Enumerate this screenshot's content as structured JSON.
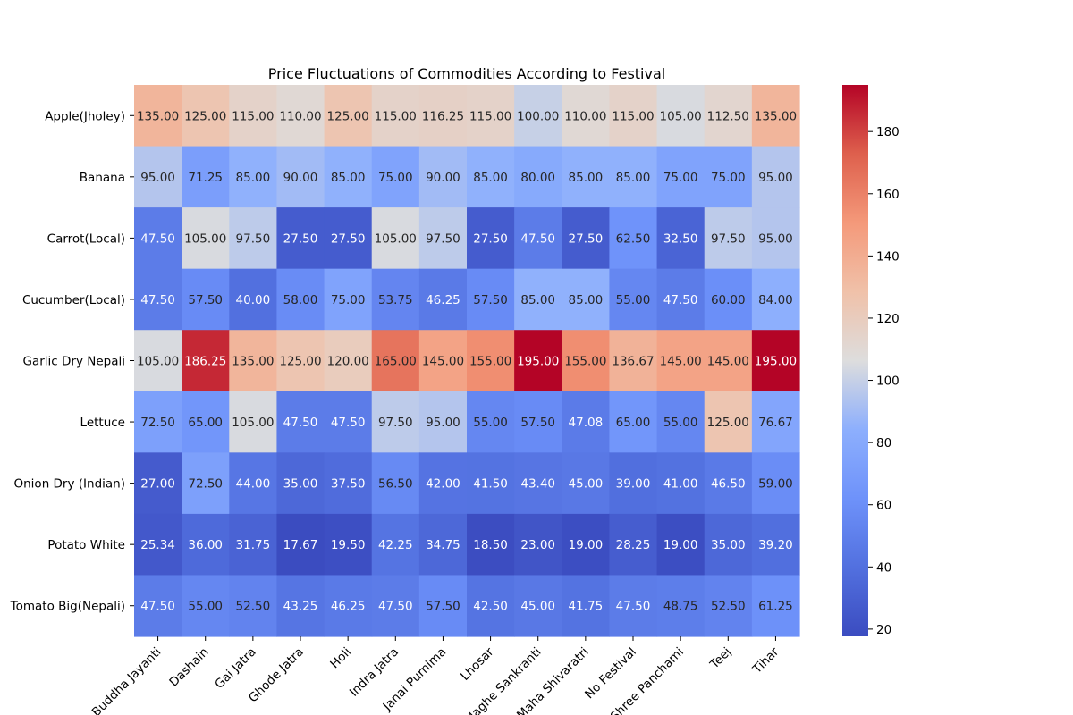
{
  "chart_data": {
    "type": "heatmap",
    "title": "Price Fluctuations of Commodities According to Festival",
    "xlabel": "",
    "ylabel": "",
    "columns": [
      "Buddha Jayanti",
      "Dashain",
      "Gai Jatra",
      "Ghode Jatra",
      "Holi",
      "Indra Jatra",
      "Janai Purnima",
      "Lhosar",
      "Maghe Sankranti",
      "Maha Shivaratri",
      "No Festival",
      "Shree Panchami",
      "Teej",
      "Tihar"
    ],
    "rows": [
      "Apple(Jholey)",
      "Banana",
      "Carrot(Local)",
      "Cucumber(Local)",
      "Garlic Dry Nepali",
      "Lettuce",
      "Onion Dry (Indian)",
      "Potato White",
      "Tomato Big(Nepali)"
    ],
    "values": [
      [
        135.0,
        125.0,
        115.0,
        110.0,
        125.0,
        115.0,
        116.25,
        115.0,
        100.0,
        110.0,
        115.0,
        105.0,
        112.5,
        135.0
      ],
      [
        95.0,
        71.25,
        85.0,
        90.0,
        85.0,
        75.0,
        90.0,
        85.0,
        80.0,
        85.0,
        85.0,
        75.0,
        75.0,
        95.0
      ],
      [
        47.5,
        105.0,
        97.5,
        27.5,
        27.5,
        105.0,
        97.5,
        27.5,
        47.5,
        27.5,
        62.5,
        32.5,
        97.5,
        95.0
      ],
      [
        47.5,
        57.5,
        40.0,
        58.0,
        75.0,
        53.75,
        46.25,
        57.5,
        85.0,
        85.0,
        55.0,
        47.5,
        60.0,
        84.0
      ],
      [
        105.0,
        186.25,
        135.0,
        125.0,
        120.0,
        165.0,
        145.0,
        155.0,
        195.0,
        155.0,
        136.67,
        145.0,
        145.0,
        195.0
      ],
      [
        72.5,
        65.0,
        105.0,
        47.5,
        47.5,
        97.5,
        95.0,
        55.0,
        57.5,
        47.08,
        65.0,
        55.0,
        125.0,
        76.67
      ],
      [
        27.0,
        72.5,
        44.0,
        35.0,
        37.5,
        56.5,
        42.0,
        41.5,
        43.4,
        45.0,
        39.0,
        41.0,
        46.5,
        59.0
      ],
      [
        25.34,
        36.0,
        31.75,
        17.67,
        19.5,
        42.25,
        34.75,
        18.5,
        23.0,
        19.0,
        28.25,
        19.0,
        35.0,
        39.2
      ],
      [
        47.5,
        55.0,
        52.5,
        43.25,
        46.25,
        47.5,
        57.5,
        42.5,
        45.0,
        41.75,
        47.5,
        48.75,
        52.5,
        61.25
      ]
    ],
    "value_format": "2 decimals",
    "colormap": "coolwarm",
    "colorbar": {
      "range": [
        17.67,
        195.0
      ],
      "ticks": [
        20,
        40,
        60,
        80,
        100,
        120,
        140,
        160,
        180
      ]
    }
  }
}
